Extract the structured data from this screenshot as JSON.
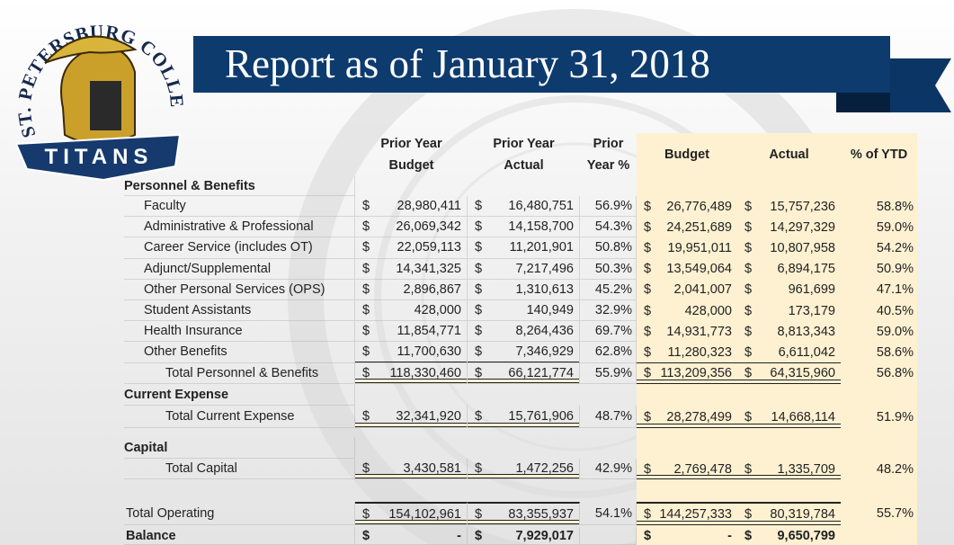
{
  "logo": {
    "arc_text": "ST. PETERSBURG COLLEGE",
    "banner_text": "TITANS"
  },
  "title": "Report as of January 31, 2018",
  "table": {
    "headers": {
      "prior_budget": [
        "Prior Year",
        "Budget"
      ],
      "prior_actual": [
        "Prior Year",
        "Actual"
      ],
      "prior_pct": [
        "Prior",
        "Year %"
      ],
      "budget": [
        "Budget"
      ],
      "actual": [
        "Actual"
      ],
      "ytd": [
        "% of YTD"
      ]
    },
    "sections": [
      {
        "title": "Personnel & Benefits",
        "rows": [
          {
            "label": "Faculty",
            "cells": {
              "prior_budget": [
                "$",
                "28,980,411"
              ],
              "prior_actual": [
                "$",
                "16,480,751"
              ],
              "prior_pct": "56.9%",
              "budget": [
                "$",
                "26,776,489"
              ],
              "actual": [
                "$",
                "15,757,236"
              ],
              "ytd": "58.8%"
            }
          },
          {
            "label": "Administrative & Professional",
            "cells": {
              "prior_budget": [
                "$",
                "26,069,342"
              ],
              "prior_actual": [
                "$",
                "14,158,700"
              ],
              "prior_pct": "54.3%",
              "budget": [
                "$",
                "24,251,689"
              ],
              "actual": [
                "$",
                "14,297,329"
              ],
              "ytd": "59.0%"
            }
          },
          {
            "label": "Career Service (includes OT)",
            "cells": {
              "prior_budget": [
                "$",
                "22,059,113"
              ],
              "prior_actual": [
                "$",
                "11,201,901"
              ],
              "prior_pct": "50.8%",
              "budget": [
                "$",
                "19,951,011"
              ],
              "actual": [
                "$",
                "10,807,958"
              ],
              "ytd": "54.2%"
            }
          },
          {
            "label": "Adjunct/Supplemental",
            "cells": {
              "prior_budget": [
                "$",
                "14,341,325"
              ],
              "prior_actual": [
                "$",
                "7,217,496"
              ],
              "prior_pct": "50.3%",
              "budget": [
                "$",
                "13,549,064"
              ],
              "actual": [
                "$",
                "6,894,175"
              ],
              "ytd": "50.9%"
            }
          },
          {
            "label": "Other Personal Services (OPS)",
            "cells": {
              "prior_budget": [
                "$",
                "2,896,867"
              ],
              "prior_actual": [
                "$",
                "1,310,613"
              ],
              "prior_pct": "45.2%",
              "budget": [
                "$",
                "2,041,007"
              ],
              "actual": [
                "$",
                "961,699"
              ],
              "ytd": "47.1%"
            }
          },
          {
            "label": "Student Assistants",
            "cells": {
              "prior_budget": [
                "$",
                "428,000"
              ],
              "prior_actual": [
                "$",
                "140,949"
              ],
              "prior_pct": "32.9%",
              "budget": [
                "$",
                "428,000"
              ],
              "actual": [
                "$",
                "173,179"
              ],
              "ytd": "40.5%"
            }
          },
          {
            "label": "Health Insurance",
            "cells": {
              "prior_budget": [
                "$",
                "11,854,771"
              ],
              "prior_actual": [
                "$",
                "8,264,436"
              ],
              "prior_pct": "69.7%",
              "budget": [
                "$",
                "14,931,773"
              ],
              "actual": [
                "$",
                "8,813,343"
              ],
              "ytd": "59.0%"
            }
          },
          {
            "label": "Other Benefits",
            "cells": {
              "prior_budget": [
                "$",
                "11,700,630"
              ],
              "prior_actual": [
                "$",
                "7,346,929"
              ],
              "prior_pct": "62.8%",
              "budget": [
                "$",
                "11,280,323"
              ],
              "actual": [
                "$",
                "6,611,042"
              ],
              "ytd": "58.6%"
            }
          }
        ],
        "total": {
          "label": "Total Personnel & Benefits",
          "cells": {
            "prior_budget": [
              "$",
              "118,330,460"
            ],
            "prior_actual": [
              "$",
              "66,121,774"
            ],
            "prior_pct": "55.9%",
            "budget": [
              "$",
              "113,209,356"
            ],
            "actual": [
              "$",
              "64,315,960"
            ],
            "ytd": "56.8%"
          }
        }
      },
      {
        "title": "Current Expense",
        "total": {
          "label": "Total Current Expense",
          "cells": {
            "prior_budget": [
              "$",
              "32,341,920"
            ],
            "prior_actual": [
              "$",
              "15,761,906"
            ],
            "prior_pct": "48.7%",
            "budget": [
              "$",
              "28,278,499"
            ],
            "actual": [
              "$",
              "14,668,114"
            ],
            "ytd": "51.9%"
          }
        }
      },
      {
        "title": "Capital",
        "total": {
          "label": "Total Capital",
          "cells": {
            "prior_budget": [
              "$",
              "3,430,581"
            ],
            "prior_actual": [
              "$",
              "1,472,256"
            ],
            "prior_pct": "42.9%",
            "budget": [
              "$",
              "2,769,478"
            ],
            "actual": [
              "$",
              "1,335,709"
            ],
            "ytd": "48.2%"
          }
        }
      }
    ],
    "total_operating": {
      "label": "Total Operating",
      "cells": {
        "prior_budget": [
          "$",
          "154,102,961"
        ],
        "prior_actual": [
          "$",
          "83,355,937"
        ],
        "prior_pct": "54.1%",
        "budget": [
          "$",
          "144,257,333"
        ],
        "actual": [
          "$",
          "80,319,784"
        ],
        "ytd": "55.7%"
      }
    },
    "balance": {
      "label": "Balance",
      "cells": {
        "prior_budget": [
          "$",
          "-"
        ],
        "prior_actual": [
          "$",
          "7,929,017"
        ],
        "budget": [
          "$",
          "-"
        ],
        "actual": [
          "$",
          "9,650,799"
        ]
      }
    }
  }
}
